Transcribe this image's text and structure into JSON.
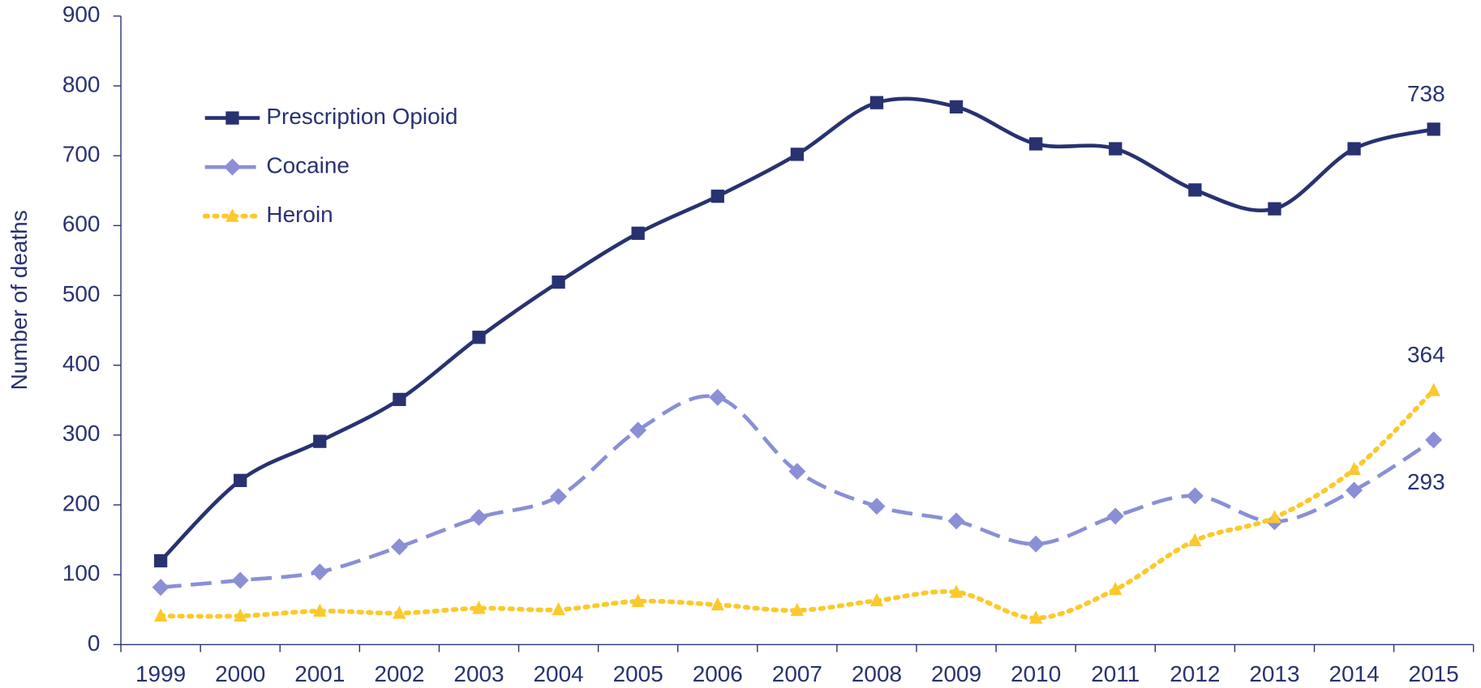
{
  "chart_data": {
    "type": "line",
    "y_label": "Number of deaths",
    "categories": [
      "1999",
      "2000",
      "2001",
      "2002",
      "2003",
      "2004",
      "2005",
      "2006",
      "2007",
      "2008",
      "2009",
      "2010",
      "2011",
      "2012",
      "2013",
      "2014",
      "2015"
    ],
    "series": [
      {
        "name": "Prescription Opioid",
        "color": "#283271",
        "marker": "square",
        "dash": "solid",
        "values": [
          120,
          235,
          291,
          351,
          440,
          519,
          589,
          642,
          702,
          776,
          770,
          717,
          710,
          651,
          624,
          710,
          738
        ]
      },
      {
        "name": "Cocaine",
        "color": "#8a8fd6",
        "marker": "diamond",
        "dash": "dashed",
        "values": [
          82,
          92,
          104,
          140,
          182,
          212,
          307,
          354,
          248,
          198,
          177,
          144,
          184,
          213,
          176,
          221,
          293
        ]
      },
      {
        "name": "Heroin",
        "color": "#fcc92b",
        "marker": "triangle",
        "dash": "dotted",
        "values": [
          41,
          41,
          48,
          45,
          52,
          50,
          62,
          57,
          49,
          63,
          75,
          38,
          79,
          149,
          182,
          251,
          364
        ]
      }
    ],
    "ylim": [
      0,
      900
    ],
    "yticks": [
      0,
      100,
      200,
      300,
      400,
      500,
      600,
      700,
      800,
      900
    ],
    "grid": false,
    "legend": "top-left"
  }
}
